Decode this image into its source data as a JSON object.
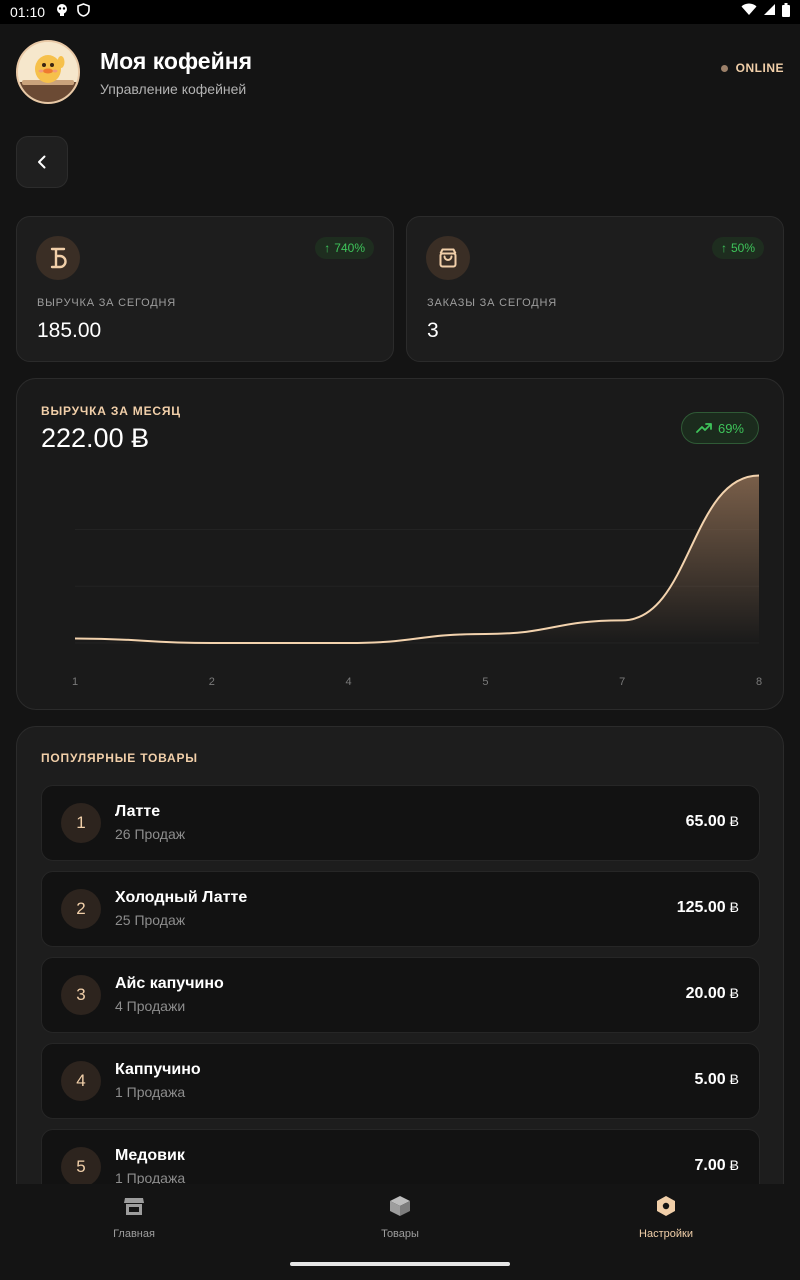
{
  "status_bar": {
    "time": "01:10"
  },
  "header": {
    "title": "Моя кофейня",
    "subtitle": "Управление кофейней",
    "status": "ONLINE"
  },
  "stats": [
    {
      "label": "ВЫРУЧКА ЗА СЕГОДНЯ",
      "value": "185.00",
      "change": "740%",
      "icon": "bitcoin-like-currency-icon"
    },
    {
      "label": "ЗАКАЗЫ ЗА СЕГОДНЯ",
      "value": "3",
      "change": "50%",
      "icon": "shopping-bag-icon"
    }
  ],
  "month": {
    "label": "ВЫРУЧКА ЗА МЕСЯЦ",
    "value": "222.00 Ƀ",
    "change": "69%"
  },
  "chart_data": {
    "type": "area",
    "x_ticks": [
      "1",
      "2",
      "4",
      "5",
      "7",
      "8"
    ],
    "x": [
      1,
      2,
      4,
      5,
      7,
      8
    ],
    "values": [
      5,
      0,
      0,
      10,
      25,
      185
    ],
    "ylim": [
      0,
      190
    ],
    "colors": {
      "line": "#f3d3ae",
      "fill": "#8a6b52"
    }
  },
  "popular": {
    "title": "ПОПУЛЯРНЫЕ ТОВАРЫ",
    "currency": "Ƀ",
    "items": [
      {
        "rank": "1",
        "name": "Латте",
        "sales": "26 Продаж",
        "price": "65.00"
      },
      {
        "rank": "2",
        "name": "Холодный Латте",
        "sales": "25 Продаж",
        "price": "125.00"
      },
      {
        "rank": "3",
        "name": "Айс капучино",
        "sales": "4 Продажи",
        "price": "20.00"
      },
      {
        "rank": "4",
        "name": "Каппучино",
        "sales": "1 Продажа",
        "price": "5.00"
      },
      {
        "rank": "5",
        "name": "Медовик",
        "sales": "1 Продажа",
        "price": "7.00"
      }
    ]
  },
  "nav": [
    {
      "label": "Главная",
      "icon": "store-icon",
      "active": false
    },
    {
      "label": "Товары",
      "icon": "box-icon",
      "active": false
    },
    {
      "label": "Настройки",
      "icon": "settings-hex-icon",
      "active": true
    }
  ],
  "colors": {
    "accent": "#f1cfa9",
    "positive": "#3ec45a",
    "background": "#141414"
  }
}
